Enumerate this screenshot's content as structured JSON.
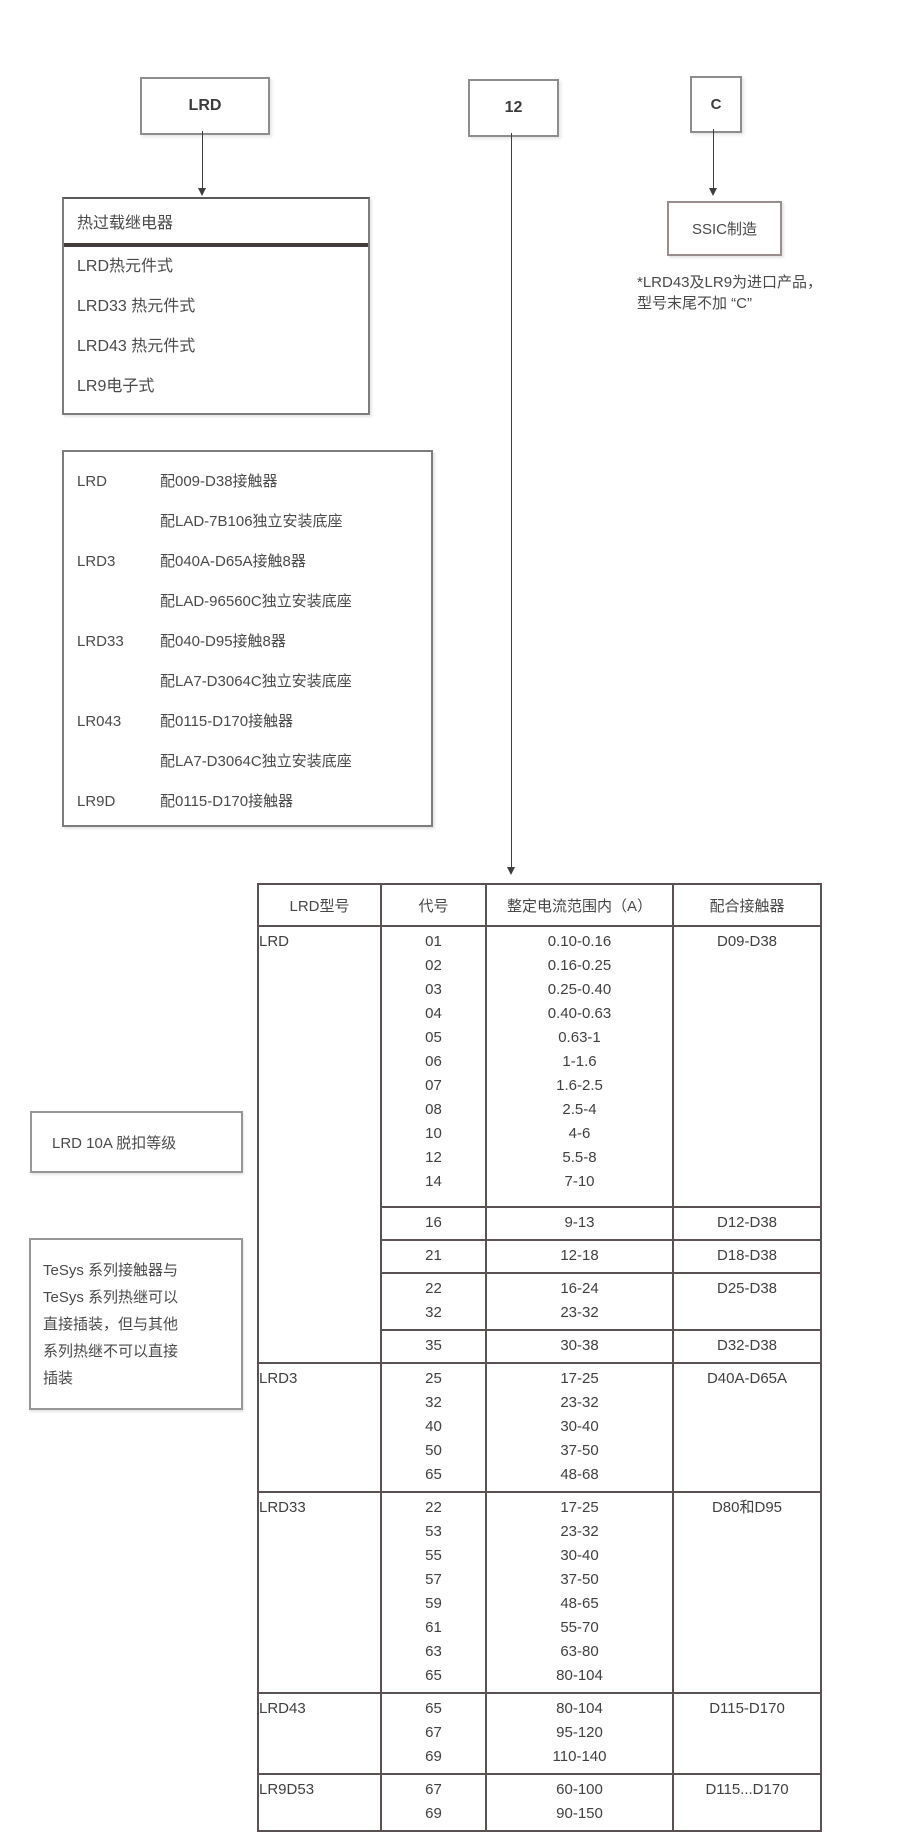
{
  "code_parts": {
    "prefix": "LRD",
    "current_code": "12",
    "origin_code": "C"
  },
  "type_box": {
    "title": "热过载继电器",
    "items": [
      "LRD热元件式",
      "LRD33 热元件式",
      "LRD43 热元件式",
      "LR9电子式"
    ]
  },
  "pairing_box": {
    "rows": [
      {
        "model": "LRD",
        "desc": "配009-D38接触器"
      },
      {
        "model": "",
        "desc": "配LAD-7B106独立安装底座"
      },
      {
        "model": "LRD3",
        "desc": "配040A-D65A接触8器"
      },
      {
        "model": "",
        "desc": "配LAD-96560C独立安装底座"
      },
      {
        "model": "LRD33",
        "desc": "配040-D95接触8器"
      },
      {
        "model": "",
        "desc": "配LA7-D3064C独立安装底座"
      },
      {
        "model": "LR043",
        "desc": "配0115-D170接触器"
      },
      {
        "model": "",
        "desc": "配LA7-D3064C独立安装底座"
      },
      {
        "model": "LR9D",
        "desc": "配0115-D170接触器"
      }
    ]
  },
  "manufacture_box": {
    "label": "SSIC制造"
  },
  "footnote": {
    "line1": "*LRD43及LR9为进口产品，",
    "line2": "型号末尾不加 “C”"
  },
  "trip_class_box": {
    "label": "LRD 10A 脱扣等级"
  },
  "tesys_note_box": {
    "lines": [
      "TeSys 系列接触器与",
      "TeSys 系列热继可以",
      "直接插装，但与其他",
      "系列热继不可以直接",
      "插装"
    ]
  },
  "table": {
    "headers": [
      "LRD型号",
      "代号",
      "整定电流范围内（A）",
      "配合接触器"
    ],
    "sections": [
      {
        "model": "LRD",
        "groups": [
          {
            "contactor": "D09-D38",
            "rows": [
              [
                "01",
                "0.10-0.16"
              ],
              [
                "02",
                "0.16-0.25"
              ],
              [
                "03",
                "0.25-0.40"
              ],
              [
                "04",
                "0.40-0.63"
              ],
              [
                "05",
                "0.63-1"
              ],
              [
                "06",
                "1-1.6"
              ],
              [
                "07",
                "1.6-2.5"
              ],
              [
                "08",
                "2.5-4"
              ],
              [
                "10",
                "4-6"
              ],
              [
                "12",
                "5.5-8"
              ],
              [
                "14",
                "7-10"
              ]
            ]
          },
          {
            "contactor": "D12-D38",
            "rows": [
              [
                "16",
                "9-13"
              ]
            ]
          },
          {
            "contactor": "D18-D38",
            "rows": [
              [
                "21",
                "12-18"
              ]
            ]
          },
          {
            "contactor": "D25-D38",
            "rows": [
              [
                "22",
                "16-24"
              ],
              [
                "32",
                "23-32"
              ]
            ]
          },
          {
            "contactor": "D32-D38",
            "rows": [
              [
                "35",
                "30-38"
              ]
            ]
          }
        ]
      },
      {
        "model": "LRD3",
        "groups": [
          {
            "contactor": "D40A-D65A",
            "rows": [
              [
                "25",
                "17-25"
              ],
              [
                "32",
                "23-32"
              ],
              [
                "40",
                "30-40"
              ],
              [
                "50",
                "37-50"
              ],
              [
                "65",
                "48-68"
              ]
            ]
          }
        ]
      },
      {
        "model": "LRD33",
        "groups": [
          {
            "contactor": "D80和D95",
            "rows": [
              [
                "22",
                "17-25"
              ],
              [
                "53",
                "23-32"
              ],
              [
                "55",
                "30-40"
              ],
              [
                "57",
                "37-50"
              ],
              [
                "59",
                "48-65"
              ],
              [
                "61",
                "55-70"
              ],
              [
                "63",
                "63-80"
              ],
              [
                "65",
                "80-104"
              ]
            ]
          }
        ]
      },
      {
        "model": "LRD43",
        "groups": [
          {
            "contactor": "D115-D170",
            "rows": [
              [
                "65",
                "80-104"
              ],
              [
                "67",
                "95-120"
              ],
              [
                "69",
                "110-140"
              ]
            ]
          }
        ]
      },
      {
        "model": "LR9D53",
        "groups": [
          {
            "contactor": "D115...D170",
            "rows": [
              [
                "67",
                "60-100"
              ],
              [
                "69",
                "90-150"
              ]
            ]
          }
        ]
      }
    ]
  }
}
